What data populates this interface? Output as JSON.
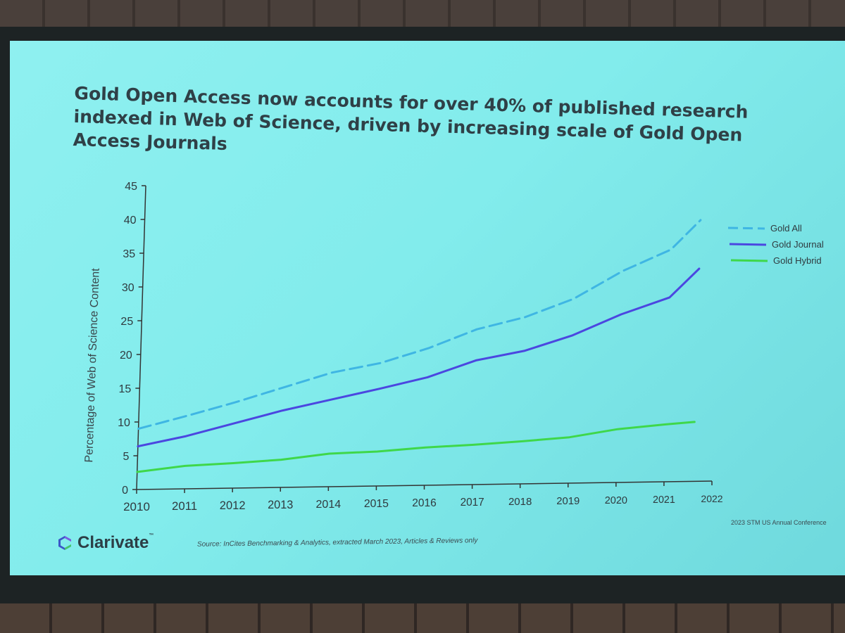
{
  "slide": {
    "title": "Gold Open Access now accounts for over 40% of published research indexed in Web of Science, driven by increasing scale of Gold Open Access Journals",
    "source": "Source: InCites  Benchmarking & Analytics, extracted March 2023, Articles & Reviews only",
    "conference": "2023 STM US Annual Conference",
    "logo_text": "Clarivate",
    "logo_mark": "™"
  },
  "chart_data": {
    "type": "line",
    "title": "",
    "xlabel": "",
    "ylabel": "Percentage of Web of Science Content",
    "x": [
      2010,
      2011,
      2012,
      2013,
      2014,
      2015,
      2016,
      2017,
      2018,
      2019,
      2020,
      2021,
      2022
    ],
    "x_tick_labels": [
      "2010",
      "2011",
      "2012",
      "2013",
      "2014",
      "2015",
      "2016",
      "2017",
      "2018",
      "2019",
      "2020",
      "2021",
      "2022"
    ],
    "y_ticks": [
      0,
      5,
      10,
      15,
      20,
      25,
      30,
      35,
      40,
      45
    ],
    "ylim": [
      0,
      45
    ],
    "legend_position": "right",
    "grid": false,
    "series": [
      {
        "name": "Gold All",
        "style": "dashed",
        "color": "#3fb6e3",
        "x": [
          2010,
          2011,
          2012,
          2013,
          2014,
          2015,
          2016,
          2017,
          2018,
          2019,
          2020,
          2021,
          2021.6
        ],
        "values": [
          9,
          10.8,
          12.7,
          14.8,
          16.9,
          18.2,
          20.3,
          23,
          24.7,
          27.3,
          31.3,
          34.4,
          38.7
        ]
      },
      {
        "name": "Gold Journal",
        "style": "solid",
        "color": "#4b47e0",
        "x": [
          2010,
          2011,
          2012,
          2013,
          2014,
          2015,
          2016,
          2017,
          2018,
          2019,
          2020,
          2021,
          2021.6
        ],
        "values": [
          6.4,
          7.8,
          9.6,
          11.4,
          12.9,
          14.4,
          16,
          18.4,
          19.7,
          21.9,
          24.9,
          27.3,
          31.5
        ]
      },
      {
        "name": "Gold Hybrid",
        "style": "solid",
        "color": "#3fd74a",
        "x": [
          2010,
          2011,
          2012,
          2013,
          2014,
          2015,
          2016,
          2017,
          2018,
          2019,
          2020,
          2021,
          2021.6
        ],
        "values": [
          2.6,
          3.4,
          3.7,
          4.1,
          4.9,
          5.1,
          5.6,
          5.9,
          6.3,
          6.8,
          7.9,
          8.5,
          8.8
        ]
      }
    ]
  }
}
